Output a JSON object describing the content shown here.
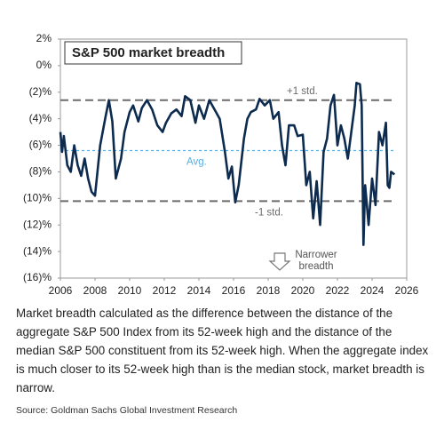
{
  "chart_data": {
    "type": "line",
    "title": "S&P 500 market breadth",
    "x": [
      2006.0,
      2006.1,
      2006.2,
      2006.4,
      2006.6,
      2006.8,
      2007.0,
      2007.2,
      2007.4,
      2007.6,
      2007.8,
      2008.0,
      2008.3,
      2008.6,
      2008.8,
      2009.0,
      2009.2,
      2009.5,
      2009.7,
      2010.0,
      2010.2,
      2010.5,
      2010.7,
      2011.0,
      2011.3,
      2011.6,
      2011.9,
      2012.1,
      2012.4,
      2012.7,
      2013.0,
      2013.2,
      2013.5,
      2013.8,
      2014.0,
      2014.3,
      2014.6,
      2014.9,
      2015.2,
      2015.5,
      2015.7,
      2015.9,
      2016.1,
      2016.3,
      2016.6,
      2016.8,
      2017.0,
      2017.3,
      2017.5,
      2017.8,
      2018.1,
      2018.3,
      2018.6,
      2018.8,
      2019.0,
      2019.2,
      2019.5,
      2019.7,
      2020.0,
      2020.2,
      2020.4,
      2020.6,
      2020.8,
      2021.0,
      2021.2,
      2021.4,
      2021.6,
      2021.8,
      2022.0,
      2022.2,
      2022.4,
      2022.6,
      2022.8,
      2023.0,
      2023.1,
      2023.3,
      2023.4,
      2023.5,
      2023.6,
      2023.8,
      2024.0,
      2024.2,
      2024.4,
      2024.6,
      2024.8,
      2024.9,
      2025.0,
      2025.1,
      2025.3
    ],
    "values": [
      -5.0,
      -6.5,
      -5.3,
      -7.5,
      -8.0,
      -6.0,
      -7.5,
      -8.3,
      -7.0,
      -8.5,
      -9.5,
      -9.8,
      -6.0,
      -3.9,
      -2.6,
      -4.2,
      -8.5,
      -7.0,
      -5.0,
      -3.5,
      -3.0,
      -4.2,
      -3.2,
      -2.6,
      -3.3,
      -4.5,
      -5.0,
      -4.3,
      -3.6,
      -3.3,
      -3.8,
      -2.3,
      -2.6,
      -4.3,
      -3.0,
      -4.0,
      -2.6,
      -3.3,
      -4.0,
      -6.5,
      -8.5,
      -7.6,
      -10.3,
      -9.0,
      -5.5,
      -4.0,
      -3.5,
      -3.3,
      -2.5,
      -3.0,
      -2.6,
      -4.0,
      -3.5,
      -6.0,
      -7.5,
      -4.5,
      -4.5,
      -5.3,
      -5.2,
      -9.0,
      -8.0,
      -11.5,
      -8.7,
      -12.0,
      -6.5,
      -5.5,
      -3.0,
      -2.2,
      -6.0,
      -4.5,
      -5.5,
      -7.0,
      -5.0,
      -3.0,
      -1.3,
      -1.4,
      -3.0,
      -13.5,
      -9.0,
      -12.0,
      -8.5,
      -10.5,
      -5.0,
      -6.0,
      -4.3,
      -9.0,
      -9.2,
      -8.0,
      -8.2
    ],
    "color": "#0c2b4e",
    "xlim": [
      2006,
      2026
    ],
    "xticks": [
      2006,
      2008,
      2010,
      2012,
      2014,
      2016,
      2018,
      2020,
      2022,
      2024,
      2026
    ],
    "ylim": [
      -16,
      2
    ],
    "yticks": [
      {
        "value": 2,
        "label": "2%"
      },
      {
        "value": 0,
        "label": "0%"
      },
      {
        "value": -2,
        "label": "(2)%"
      },
      {
        "value": -4,
        "label": "(4)%"
      },
      {
        "value": -6,
        "label": "(6)%"
      },
      {
        "value": -8,
        "label": "(8)%"
      },
      {
        "value": -10,
        "label": "(10)%"
      },
      {
        "value": -12,
        "label": "(12)%"
      },
      {
        "value": -14,
        "label": "(14)%"
      },
      {
        "value": -16,
        "label": "(16)%"
      }
    ],
    "reference_lines": [
      {
        "value": -2.6,
        "label": "+1 std.",
        "color": "#6b6b6b"
      },
      {
        "value": -6.4,
        "label": "Avg.",
        "color": "#5aaee0"
      },
      {
        "value": -10.2,
        "label": "-1 std.",
        "color": "#6b6b6b"
      }
    ],
    "annotation": [
      "Narrower",
      "breadth"
    ],
    "caption": "Market breadth calculated as the difference between the distance of the aggregate S&P 500 Index from its 52-week high and the distance of the median S&P 500 constituent from its 52-week high. When the aggregate index is much closer to its 52-week high than is the median stock, market breadth is narrow.",
    "source": "Source: Goldman Sachs Global Investment Research"
  }
}
